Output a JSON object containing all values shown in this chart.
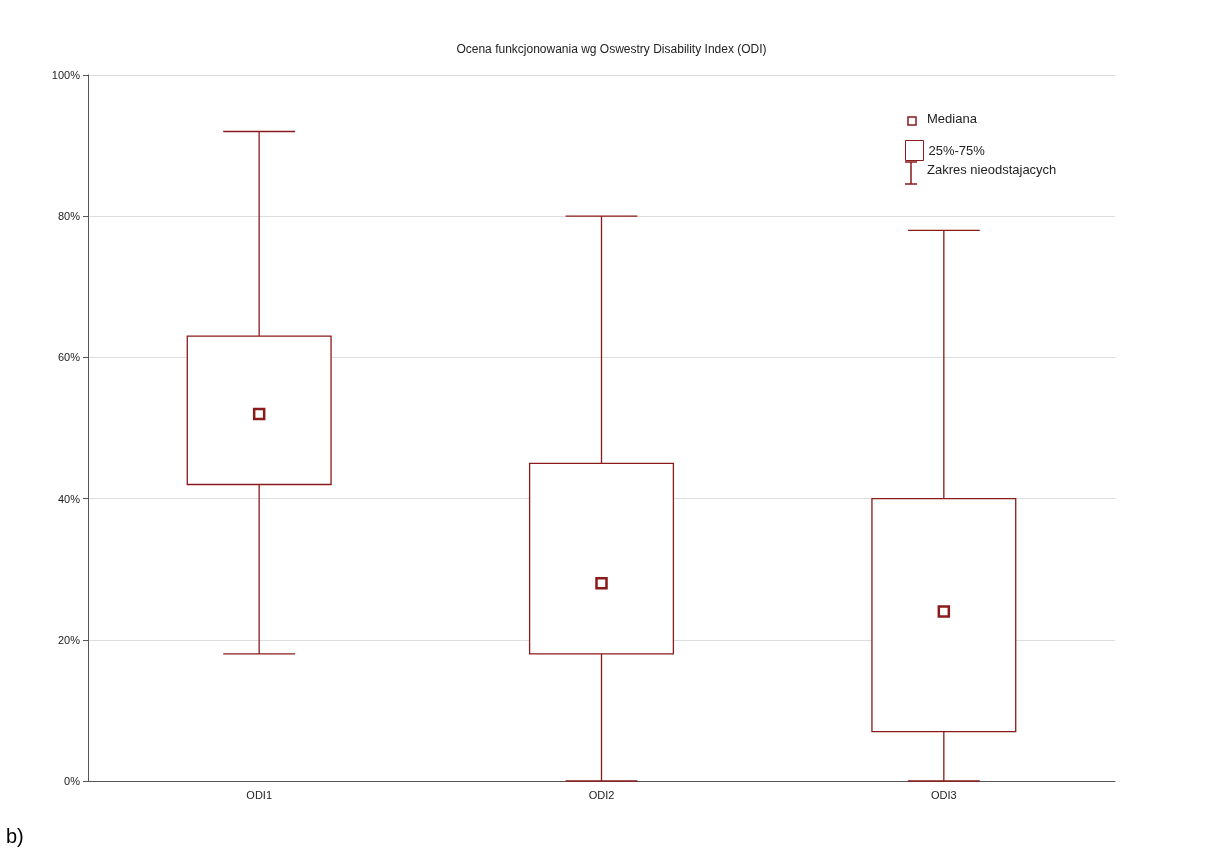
{
  "chart_data": {
    "type": "box",
    "title": "Ocena funkcjonowania wg Oswestry Disability Index (ODI)",
    "categories": [
      "ODI1",
      "ODI2",
      "ODI3"
    ],
    "series": [
      {
        "name": "25%-75%",
        "color": "#8b1a1a",
        "boxes": [
          {
            "low": 18,
            "q1": 42,
            "median": 52,
            "q3": 63,
            "high": 92
          },
          {
            "low": 0,
            "q1": 18,
            "median": 28,
            "q3": 45,
            "high": 80
          },
          {
            "low": 0,
            "q1": 7,
            "median": 24,
            "q3": 40,
            "high": 78
          }
        ]
      }
    ],
    "ylim": [
      0,
      100
    ],
    "yticks": [
      {
        "value": 0,
        "label": "0%"
      },
      {
        "value": 20,
        "label": "20%"
      },
      {
        "value": 40,
        "label": "40%"
      },
      {
        "value": 60,
        "label": "60%"
      },
      {
        "value": 80,
        "label": "80%"
      },
      {
        "value": 100,
        "label": "100%"
      }
    ],
    "grid": "y",
    "legend": "top right",
    "annotations": [
      "Mediana",
      "Zakres nieodstajacych",
      "b)"
    ]
  }
}
